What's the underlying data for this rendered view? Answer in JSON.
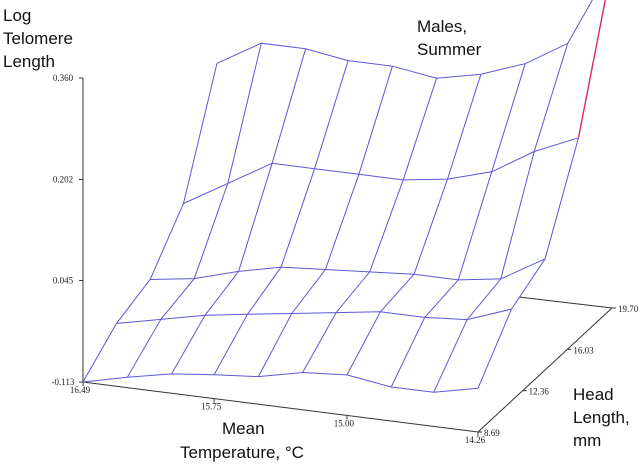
{
  "chart_data": {
    "type": "surface",
    "title": "Males, Summer",
    "zlabel": "Log Telomere Length",
    "xlabel": "Mean Temperature, °C",
    "ylabel": "Head Length, mm",
    "z_ticks": [
      "0.360",
      "0.202",
      "0.045",
      "-0.113"
    ],
    "x_ticks": [
      "16.49",
      "15.75",
      "15.00",
      "14.26"
    ],
    "y_ticks": [
      "8.69",
      "12.36",
      "16.03",
      "19.70"
    ],
    "zlim": [
      -0.113,
      0.36
    ],
    "xlim": [
      16.49,
      14.26
    ],
    "ylim": [
      8.69,
      19.7
    ],
    "temperature": [
      16.49,
      16.24,
      15.99,
      15.75,
      15.5,
      15.25,
      15.0,
      14.75,
      14.51,
      14.26
    ],
    "head_length": [
      8.69,
      11.44,
      14.2,
      16.95,
      19.7
    ],
    "log_telomere_length": [
      [
        -0.113,
        -0.097,
        -0.083,
        -0.076,
        -0.07,
        -0.055,
        -0.05,
        -0.06,
        -0.06,
        -0.045
      ],
      [
        -0.07,
        -0.055,
        -0.04,
        -0.03,
        -0.02,
        -0.01,
        0.0,
        0.0,
        0.005,
        0.03
      ],
      [
        -0.05,
        -0.04,
        -0.02,
        -0.005,
        0.0,
        0.005,
        0.01,
        0.01,
        0.02,
        0.06
      ],
      [
        0.02,
        0.06,
        0.1,
        0.1,
        0.1,
        0.1,
        0.11,
        0.13,
        0.17,
        0.2
      ],
      [
        0.19,
        0.23,
        0.23,
        0.22,
        0.22,
        0.21,
        0.225,
        0.25,
        0.29,
        0.42
      ]
    ],
    "color": "#5b57d9",
    "highlight_color": "#d92e6f",
    "grid": false,
    "legend": "none"
  }
}
